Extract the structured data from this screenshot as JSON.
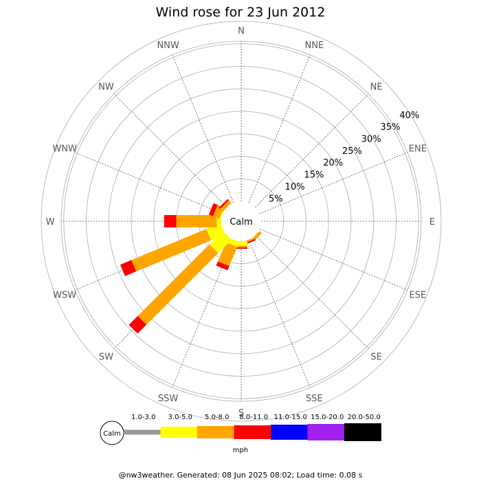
{
  "title": "Wind rose for 23 Jun 2012",
  "footer": "@nw3weather. Generated: 08 Jun 2025 08:02; Load time: 0.08 s",
  "chart_data": {
    "type": "windrose",
    "directions": [
      "N",
      "NNE",
      "NE",
      "ENE",
      "E",
      "ESE",
      "SE",
      "SSE",
      "S",
      "SSW",
      "SW",
      "WSW",
      "W",
      "WNW",
      "NW",
      "NNW"
    ],
    "ring_labels": [
      "5%",
      "10%",
      "15%",
      "20%",
      "25%",
      "30%",
      "35%",
      "40%"
    ],
    "ring_values": [
      5,
      10,
      15,
      20,
      25,
      30,
      35,
      40
    ],
    "calm_label": "Calm",
    "unit": "mph",
    "speed_bins": [
      {
        "label": "1.0-3.0",
        "color": "#999999"
      },
      {
        "label": "3.0-5.0",
        "color": "#ffff00"
      },
      {
        "label": "5.0-8.0",
        "color": "#ffa500"
      },
      {
        "label": "8.0-11.0",
        "color": "#ff0000"
      },
      {
        "label": "11.0-15.0",
        "color": "#0000ff"
      },
      {
        "label": "15.0-20.0",
        "color": "#a020f0"
      },
      {
        "label": "20.0-50.0",
        "color": "#000000"
      }
    ],
    "series": [
      {
        "direction": "N",
        "segments": [
          0,
          0,
          0,
          0,
          0,
          0,
          0
        ]
      },
      {
        "direction": "NNE",
        "segments": [
          0,
          0,
          0,
          0,
          0,
          0,
          0
        ]
      },
      {
        "direction": "NE",
        "segments": [
          0,
          0,
          0,
          0,
          0,
          0,
          0
        ]
      },
      {
        "direction": "ENE",
        "segments": [
          0,
          0,
          0,
          0,
          0,
          0,
          0
        ]
      },
      {
        "direction": "E",
        "segments": [
          0,
          0,
          0,
          0,
          0,
          0,
          0
        ]
      },
      {
        "direction": "ESE",
        "segments": [
          0,
          0,
          0,
          0,
          0,
          0,
          0
        ]
      },
      {
        "direction": "SE",
        "segments": [
          0,
          0,
          0.7,
          0,
          0,
          0,
          0
        ]
      },
      {
        "direction": "SSE",
        "segments": [
          0,
          0,
          0.4,
          0.3,
          0,
          0,
          0
        ]
      },
      {
        "direction": "S",
        "segments": [
          0,
          1.0,
          0.4,
          0.3,
          0,
          0,
          0
        ]
      },
      {
        "direction": "SSW",
        "segments": [
          0,
          1.2,
          4.6,
          1.0,
          0,
          0,
          0
        ]
      },
      {
        "direction": "SW",
        "segments": [
          0,
          4.2,
          22.5,
          2.8,
          0,
          0,
          0
        ]
      },
      {
        "direction": "WSW",
        "segments": [
          0,
          3.4,
          18.0,
          2.7,
          0,
          0,
          0
        ]
      },
      {
        "direction": "W",
        "segments": [
          0,
          1.0,
          9.0,
          2.7,
          0,
          0,
          0
        ]
      },
      {
        "direction": "WNW",
        "segments": [
          0,
          0.3,
          1.5,
          1.0,
          0,
          0,
          0
        ]
      },
      {
        "direction": "NW",
        "segments": [
          0,
          0,
          0.8,
          0.4,
          0,
          0,
          0
        ]
      },
      {
        "direction": "NNW",
        "segments": [
          0,
          0,
          0,
          0,
          0,
          0,
          0
        ]
      }
    ]
  }
}
